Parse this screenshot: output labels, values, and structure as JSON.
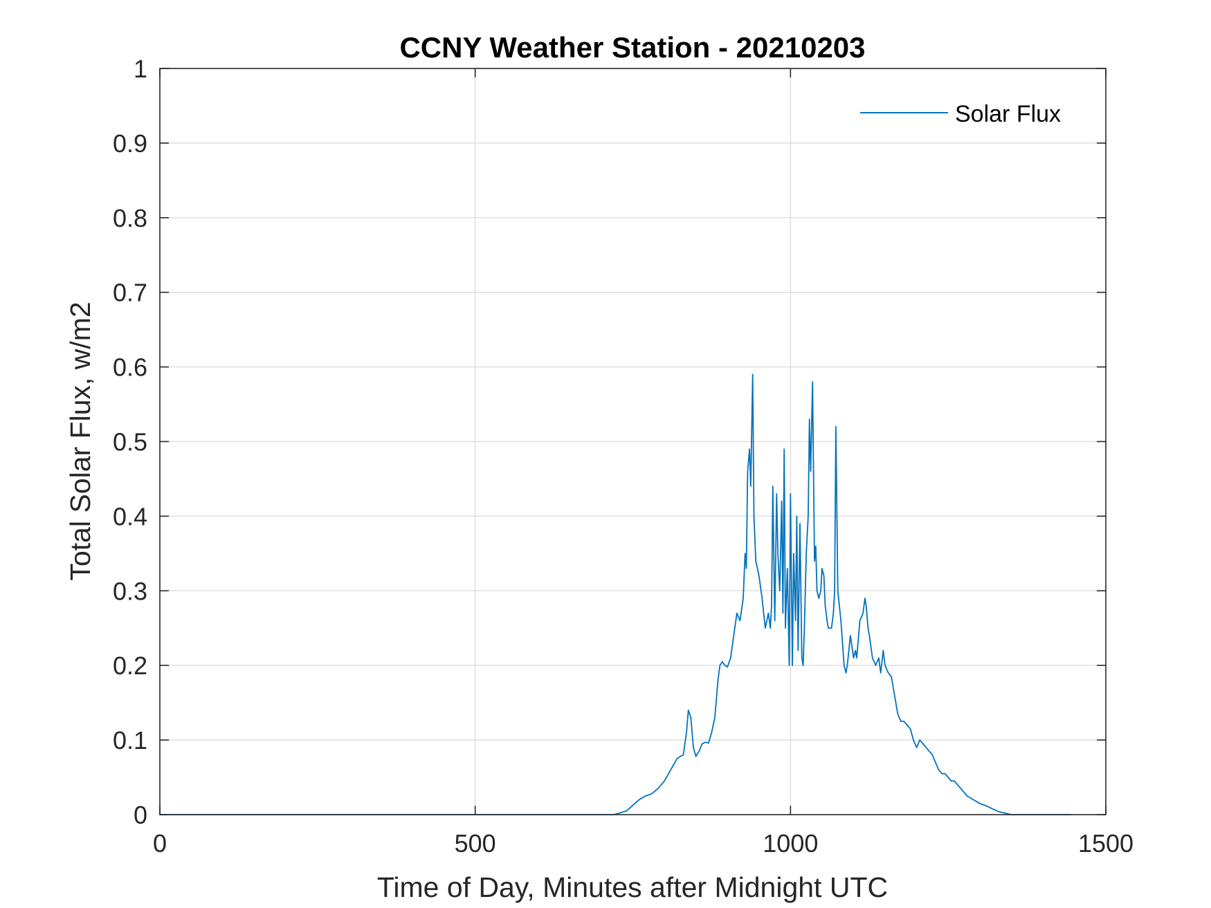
{
  "chart_data": {
    "type": "line",
    "title": "CCNY Weather Station - 20210203",
    "xlabel": "Time of Day, Minutes after Midnight UTC",
    "ylabel": "Total Solar Flux, w/m2",
    "xlim": [
      0,
      1500
    ],
    "ylim": [
      0,
      1
    ],
    "xticks": [
      0,
      500,
      1000,
      1500
    ],
    "xtick_labels": [
      "0",
      "500",
      "1000",
      "1500"
    ],
    "yticks": [
      0,
      0.1,
      0.2,
      0.3,
      0.4,
      0.5,
      0.6,
      0.7,
      0.8,
      0.9,
      1
    ],
    "ytick_labels": [
      "0",
      "0.1",
      "0.2",
      "0.3",
      "0.4",
      "0.5",
      "0.6",
      "0.7",
      "0.8",
      "0.9",
      "1"
    ],
    "grid": true,
    "legend_position": "top-right",
    "series": [
      {
        "name": "Solar Flux",
        "color": "#0072BD",
        "x": [
          0,
          500,
          700,
          720,
          740,
          760,
          770,
          780,
          790,
          800,
          810,
          820,
          825,
          830,
          835,
          838,
          842,
          846,
          850,
          855,
          860,
          865,
          870,
          875,
          880,
          885,
          888,
          892,
          896,
          900,
          905,
          910,
          915,
          920,
          925,
          928,
          930,
          932,
          935,
          937,
          940,
          942,
          945,
          950,
          955,
          960,
          965,
          968,
          970,
          972,
          975,
          978,
          980,
          983,
          986,
          988,
          990,
          992,
          995,
          998,
          1000,
          1003,
          1005,
          1008,
          1010,
          1012,
          1015,
          1018,
          1020,
          1022,
          1025,
          1028,
          1030,
          1032,
          1035,
          1038,
          1040,
          1042,
          1045,
          1048,
          1050,
          1053,
          1055,
          1058,
          1060,
          1065,
          1068,
          1070,
          1072,
          1075,
          1080,
          1085,
          1088,
          1090,
          1095,
          1100,
          1103,
          1105,
          1108,
          1110,
          1115,
          1118,
          1120,
          1123,
          1125,
          1130,
          1135,
          1140,
          1143,
          1147,
          1150,
          1155,
          1160,
          1165,
          1170,
          1175,
          1180,
          1185,
          1190,
          1195,
          1200,
          1205,
          1210,
          1215,
          1220,
          1225,
          1230,
          1235,
          1240,
          1245,
          1250,
          1255,
          1260,
          1265,
          1270,
          1280,
          1290,
          1300,
          1310,
          1320,
          1330,
          1340,
          1350,
          1360,
          1380,
          1400,
          1445
        ],
        "y": [
          0,
          0,
          0,
          0,
          0.005,
          0.02,
          0.025,
          0.028,
          0.035,
          0.045,
          0.06,
          0.075,
          0.078,
          0.08,
          0.11,
          0.14,
          0.13,
          0.09,
          0.078,
          0.085,
          0.095,
          0.097,
          0.096,
          0.11,
          0.13,
          0.18,
          0.2,
          0.205,
          0.2,
          0.198,
          0.21,
          0.24,
          0.27,
          0.26,
          0.29,
          0.35,
          0.33,
          0.46,
          0.49,
          0.44,
          0.59,
          0.4,
          0.34,
          0.32,
          0.29,
          0.25,
          0.27,
          0.25,
          0.28,
          0.44,
          0.26,
          0.43,
          0.35,
          0.3,
          0.42,
          0.27,
          0.49,
          0.25,
          0.33,
          0.2,
          0.43,
          0.2,
          0.35,
          0.26,
          0.4,
          0.22,
          0.39,
          0.21,
          0.2,
          0.25,
          0.35,
          0.4,
          0.53,
          0.46,
          0.58,
          0.34,
          0.36,
          0.3,
          0.29,
          0.3,
          0.33,
          0.32,
          0.28,
          0.26,
          0.25,
          0.25,
          0.27,
          0.3,
          0.52,
          0.3,
          0.26,
          0.2,
          0.19,
          0.2,
          0.24,
          0.21,
          0.22,
          0.21,
          0.24,
          0.26,
          0.27,
          0.29,
          0.28,
          0.25,
          0.24,
          0.21,
          0.2,
          0.21,
          0.19,
          0.22,
          0.2,
          0.19,
          0.185,
          0.16,
          0.135,
          0.125,
          0.125,
          0.12,
          0.115,
          0.1,
          0.09,
          0.1,
          0.095,
          0.09,
          0.085,
          0.08,
          0.07,
          0.06,
          0.055,
          0.055,
          0.05,
          0.045,
          0.045,
          0.04,
          0.035,
          0.025,
          0.02,
          0.015,
          0.012,
          0.008,
          0.004,
          0.002,
          0,
          0,
          0,
          0,
          0
        ]
      }
    ]
  }
}
